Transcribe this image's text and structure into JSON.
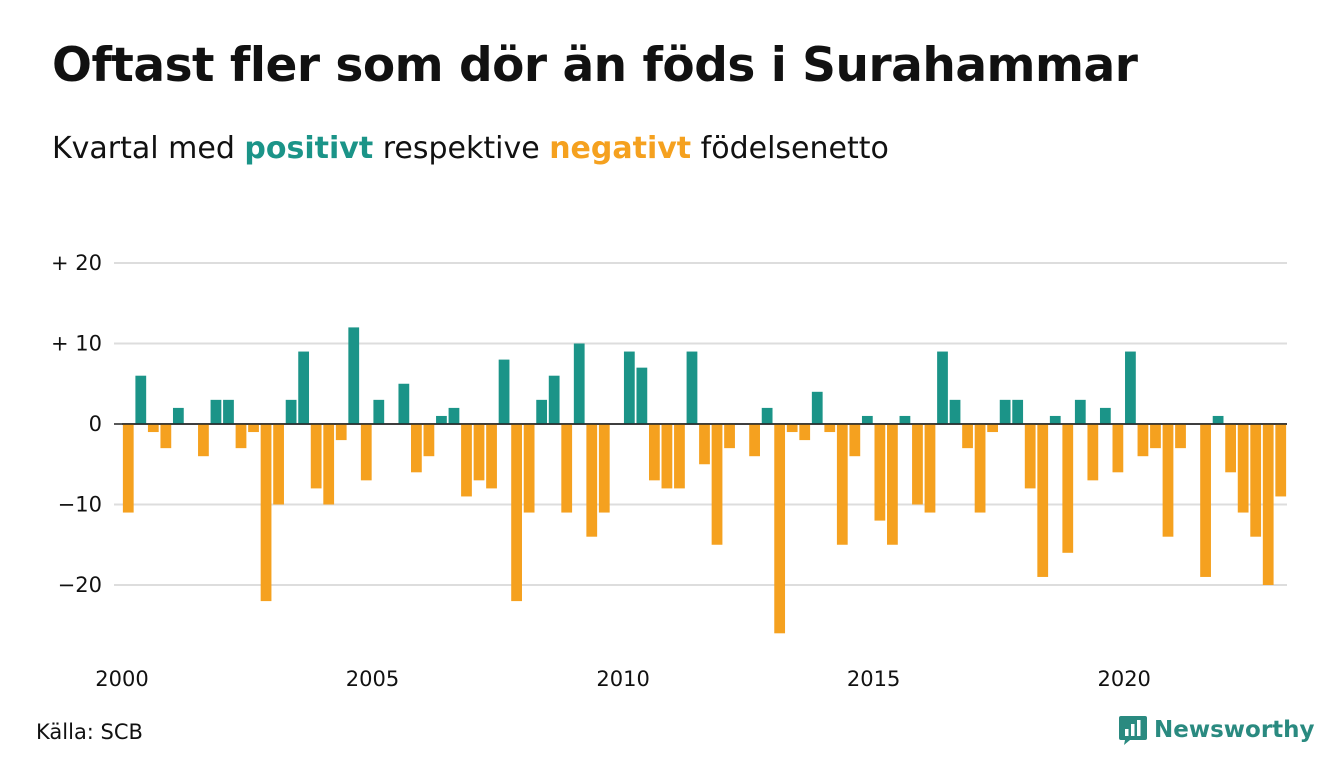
{
  "title": "Oftast fler som dör än föds i Surahammar",
  "subtitle": {
    "prefix": "Kvartal med ",
    "positive_word": "positivt",
    "middle": " respektive ",
    "negative_word": "negativt",
    "suffix": " födelsenetto"
  },
  "source": "Källa: SCB",
  "brand": {
    "name": "Newsworthy",
    "icon": "newsworthy-logo-icon"
  },
  "colors": {
    "positive": "#1b9488",
    "negative": "#f5a11f",
    "grid": "#dddddd",
    "brand": "#2a8a80"
  },
  "chart_data": {
    "type": "bar",
    "ylim": [
      -27,
      20
    ],
    "y_ticks": [
      20,
      10,
      0,
      -10,
      -20
    ],
    "y_tick_labels": [
      "+ 20",
      "+ 10",
      "0",
      "−10",
      "−20"
    ],
    "x_ticks": [
      2000,
      2005,
      2010,
      2015,
      2020
    ],
    "x_tick_labels": [
      "2000",
      "2005",
      "2010",
      "2015",
      "2020"
    ],
    "grid": true,
    "series": [
      {
        "values": [
          -11,
          6,
          -1,
          -3,
          2,
          0,
          -4,
          3,
          3,
          -3,
          -1,
          -22,
          -10,
          3,
          9,
          -8,
          -10,
          -2,
          12,
          -7,
          3,
          0,
          5,
          -6,
          -4,
          1,
          2,
          -9,
          -7,
          -8,
          8,
          -22,
          -11,
          3,
          6,
          -11,
          10,
          -14,
          -11,
          0,
          9,
          7,
          -7,
          -8,
          -8,
          9,
          -5,
          -15,
          -3,
          0,
          -4,
          2,
          -26,
          -1,
          -2,
          4,
          -1,
          -15,
          -4,
          1,
          -12,
          -15,
          1,
          -10,
          -11,
          9,
          3,
          -3,
          -11,
          -1,
          3,
          3,
          -8,
          -19,
          1,
          -16,
          3,
          -7,
          2,
          -6,
          9,
          -4,
          -3,
          -14,
          -3,
          0,
          -19,
          1,
          -6,
          -11,
          -14,
          -20,
          -9
        ]
      }
    ]
  }
}
